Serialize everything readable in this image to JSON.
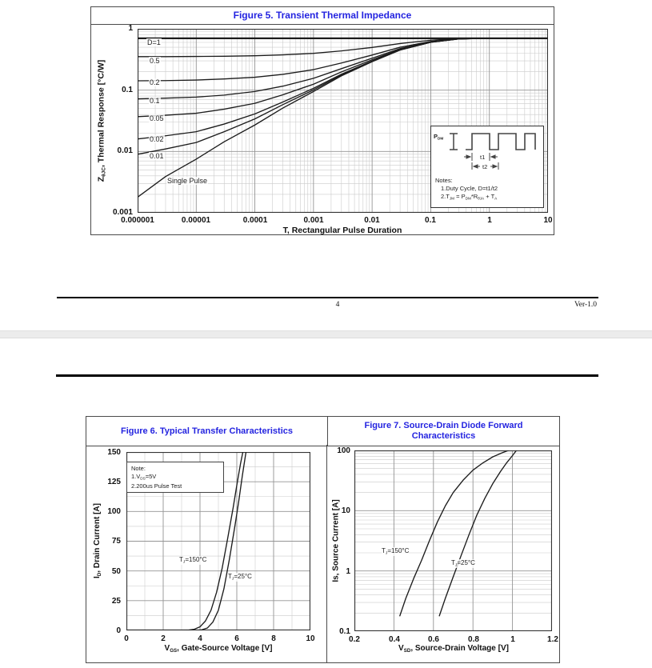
{
  "page1": {
    "figure5": {
      "title": "Figure 5. Transient Thermal Impedance",
      "y_axis": {
        "prefix": "Z",
        "sub": "θJC",
        "suffix": ", Thermal Response [°C/W]",
        "ticks": [
          "1",
          "0.1",
          "0.01",
          "0.001"
        ]
      },
      "x_axis": {
        "title": "T, Rectangular Pulse Duration",
        "ticks": [
          "0.000001",
          "0.00001",
          "0.0001",
          "0.001",
          "0.01",
          "0.1",
          "1",
          "10"
        ]
      },
      "inset": {
        "p_prefix": "P",
        "p_sub": "DM",
        "t1": "t1",
        "t2": "t2",
        "notes_title": "Notes:",
        "note1": "1.Duty  Cycle, D=t1/t2",
        "note2": {
          "p1": "2.T",
          "s1": "JM",
          "p2": " = P",
          "s2": "DM",
          "p3": "*R",
          "s3": "θJA",
          "p4": " + T",
          "s4": "A"
        }
      }
    },
    "footer": {
      "page_number": "4",
      "version": "Ver-1.0"
    }
  },
  "page2": {
    "figure6": {
      "title": "Figure 6. Typical Transfer Characteristics",
      "note": {
        "title": "Note:",
        "line1": {
          "p1": "1.V",
          "s1": "DS",
          "p2": "=5V"
        },
        "line2": "2.200us Pulse Test"
      },
      "y_axis": {
        "prefix": "I",
        "sub": "D",
        "suffix": ", Drain Current [A]",
        "ticks": [
          "150",
          "125",
          "100",
          "75",
          "50",
          "25",
          "0"
        ]
      },
      "x_axis": {
        "prefix": "V",
        "sub": "GS",
        "suffix": ", Gate-Source Voltage [V]",
        "ticks": [
          "0",
          "2",
          "4",
          "6",
          "8",
          "10"
        ]
      },
      "labels": {
        "t150": {
          "p1": "T",
          "s1": "J",
          "p2": "=150°C"
        },
        "t25": {
          "p1": "T",
          "s1": "J",
          "p2": "=25°C"
        }
      }
    },
    "figure7": {
      "title": "Figure 7. Source-Drain Diode Forward Characteristics",
      "y_axis": {
        "text": "Is, Source Current [A]",
        "ticks": [
          "100",
          "10",
          "1",
          "0.1"
        ]
      },
      "x_axis": {
        "prefix": "V",
        "sub": "SD",
        "suffix": ", Source-Drain Voltage [V]",
        "ticks": [
          "0.2",
          "0.4",
          "0.6",
          "0.8",
          "1",
          "1.2"
        ]
      },
      "labels": {
        "t150": {
          "p1": "T",
          "s1": "J",
          "p2": "=150°C"
        },
        "t25": {
          "p1": "T",
          "s1": "J",
          "p2": "=25°C"
        }
      }
    }
  },
  "chart_data": [
    {
      "type": "line",
      "title": "Figure 5. Transient Thermal Impedance",
      "xlabel": "T, Rectangular Pulse Duration",
      "ylabel": "ZθJC, Thermal Response [°C/W]",
      "x_scale": "log",
      "y_scale": "log",
      "xlim": [
        1e-06,
        10
      ],
      "ylim": [
        0.001,
        1
      ],
      "grid": "log-log minor+major",
      "legend_position": "inline-curve-labels",
      "x": [
        1e-06,
        3e-06,
        1e-05,
        3e-05,
        0.0001,
        0.0003,
        0.001,
        0.003,
        0.01,
        0.03,
        0.1,
        0.3,
        1,
        10
      ],
      "series": [
        {
          "label": "D=1",
          "lw": 2.2,
          "values": [
            0.7,
            0.7,
            0.7,
            0.7,
            0.7,
            0.7,
            0.7,
            0.7,
            0.7,
            0.7,
            0.7,
            0.7,
            0.7,
            0.7
          ]
        },
        {
          "label": "0.5",
          "values": [
            0.351,
            0.352,
            0.354,
            0.357,
            0.364,
            0.376,
            0.398,
            0.436,
            0.496,
            0.575,
            0.652,
            0.692,
            0.7,
            0.7
          ]
        },
        {
          "label": "0.2",
          "values": [
            0.142,
            0.143,
            0.146,
            0.152,
            0.162,
            0.181,
            0.216,
            0.277,
            0.373,
            0.5,
            0.622,
            0.687,
            0.7,
            0.7
          ]
        },
        {
          "label": "0.1",
          "values": [
            0.072,
            0.074,
            0.077,
            0.083,
            0.095,
            0.116,
            0.156,
            0.224,
            0.332,
            0.475,
            0.613,
            0.686,
            0.7,
            0.7
          ]
        },
        {
          "label": "0.05",
          "values": [
            0.037,
            0.039,
            0.042,
            0.049,
            0.061,
            0.084,
            0.125,
            0.198,
            0.312,
            0.463,
            0.608,
            0.685,
            0.7,
            0.7
          ]
        },
        {
          "label": "0.02",
          "values": [
            0.016,
            0.018,
            0.021,
            0.028,
            0.041,
            0.064,
            0.107,
            0.182,
            0.299,
            0.455,
            0.605,
            0.684,
            0.7,
            0.7
          ]
        },
        {
          "label": "0.01",
          "values": [
            0.009,
            0.011,
            0.014,
            0.021,
            0.034,
            0.058,
            0.101,
            0.176,
            0.295,
            0.453,
            0.604,
            0.684,
            0.7,
            0.7
          ]
        },
        {
          "label": "Single Pulse",
          "values": [
            0.0018,
            0.0039,
            0.0075,
            0.0144,
            0.027,
            0.051,
            0.095,
            0.171,
            0.291,
            0.45,
            0.603,
            0.684,
            0.7,
            0.7
          ]
        }
      ]
    },
    {
      "type": "line",
      "title": "Figure 6. Typical Transfer Characteristics",
      "xlabel": "VGS, Gate-Source Voltage [V]",
      "ylabel": "ID, Drain Current [A]",
      "x_scale": "linear",
      "y_scale": "linear",
      "xlim": [
        0,
        10
      ],
      "ylim": [
        0,
        150
      ],
      "grid": "minor 1V / 12.5A, major 2V / 25A",
      "annotations": [
        "Note: 1.VDS=5V  2.200us Pulse Test"
      ],
      "series": [
        {
          "label": "TJ=150°C",
          "points": [
            [
              0,
              0
            ],
            [
              2,
              0
            ],
            [
              3,
              0
            ],
            [
              3.4,
              0.3
            ],
            [
              3.7,
              1
            ],
            [
              4,
              3
            ],
            [
              4.3,
              8
            ],
            [
              4.6,
              17
            ],
            [
              4.9,
              32
            ],
            [
              5.2,
              52
            ],
            [
              5.5,
              77
            ],
            [
              5.8,
              103
            ],
            [
              6,
              122
            ],
            [
              6.2,
              140
            ],
            [
              6.33,
              150
            ]
          ]
        },
        {
          "label": "TJ=25°C",
          "points": [
            [
              0,
              0
            ],
            [
              2,
              0
            ],
            [
              3.8,
              0
            ],
            [
              4.1,
              0.5
            ],
            [
              4.4,
              2
            ],
            [
              4.7,
              7
            ],
            [
              5,
              17
            ],
            [
              5.3,
              35
            ],
            [
              5.6,
              60
            ],
            [
              5.9,
              88
            ],
            [
              6.1,
              108
            ],
            [
              6.3,
              130
            ],
            [
              6.5,
              150
            ]
          ]
        }
      ]
    },
    {
      "type": "line",
      "title": "Figure 7. Source-Drain Diode Forward Characteristics",
      "xlabel": "VSD, Source-Drain Voltage [V]",
      "ylabel": "Is, Source Current [A]",
      "x_scale": "linear",
      "y_scale": "log",
      "xlim": [
        0.2,
        1.2
      ],
      "ylim": [
        0.1,
        100
      ],
      "grid": "major 0.2V, log decades with minors",
      "series": [
        {
          "label": "TJ=150°C",
          "points": [
            [
              0.43,
              0.18
            ],
            [
              0.46,
              0.35
            ],
            [
              0.5,
              0.75
            ],
            [
              0.54,
              1.5
            ],
            [
              0.58,
              3.2
            ],
            [
              0.62,
              6.5
            ],
            [
              0.66,
              12
            ],
            [
              0.7,
              20
            ],
            [
              0.75,
              32
            ],
            [
              0.8,
              47
            ],
            [
              0.85,
              62
            ],
            [
              0.9,
              78
            ],
            [
              0.95,
              92
            ],
            [
              0.98,
              100
            ]
          ]
        },
        {
          "label": "TJ=25°C",
          "points": [
            [
              0.63,
              0.18
            ],
            [
              0.66,
              0.35
            ],
            [
              0.7,
              0.8
            ],
            [
              0.74,
              1.8
            ],
            [
              0.78,
              4
            ],
            [
              0.82,
              8.5
            ],
            [
              0.86,
              16
            ],
            [
              0.9,
              28
            ],
            [
              0.94,
              45
            ],
            [
              0.97,
              62
            ],
            [
              1,
              82
            ],
            [
              1.02,
              100
            ]
          ]
        }
      ]
    }
  ]
}
